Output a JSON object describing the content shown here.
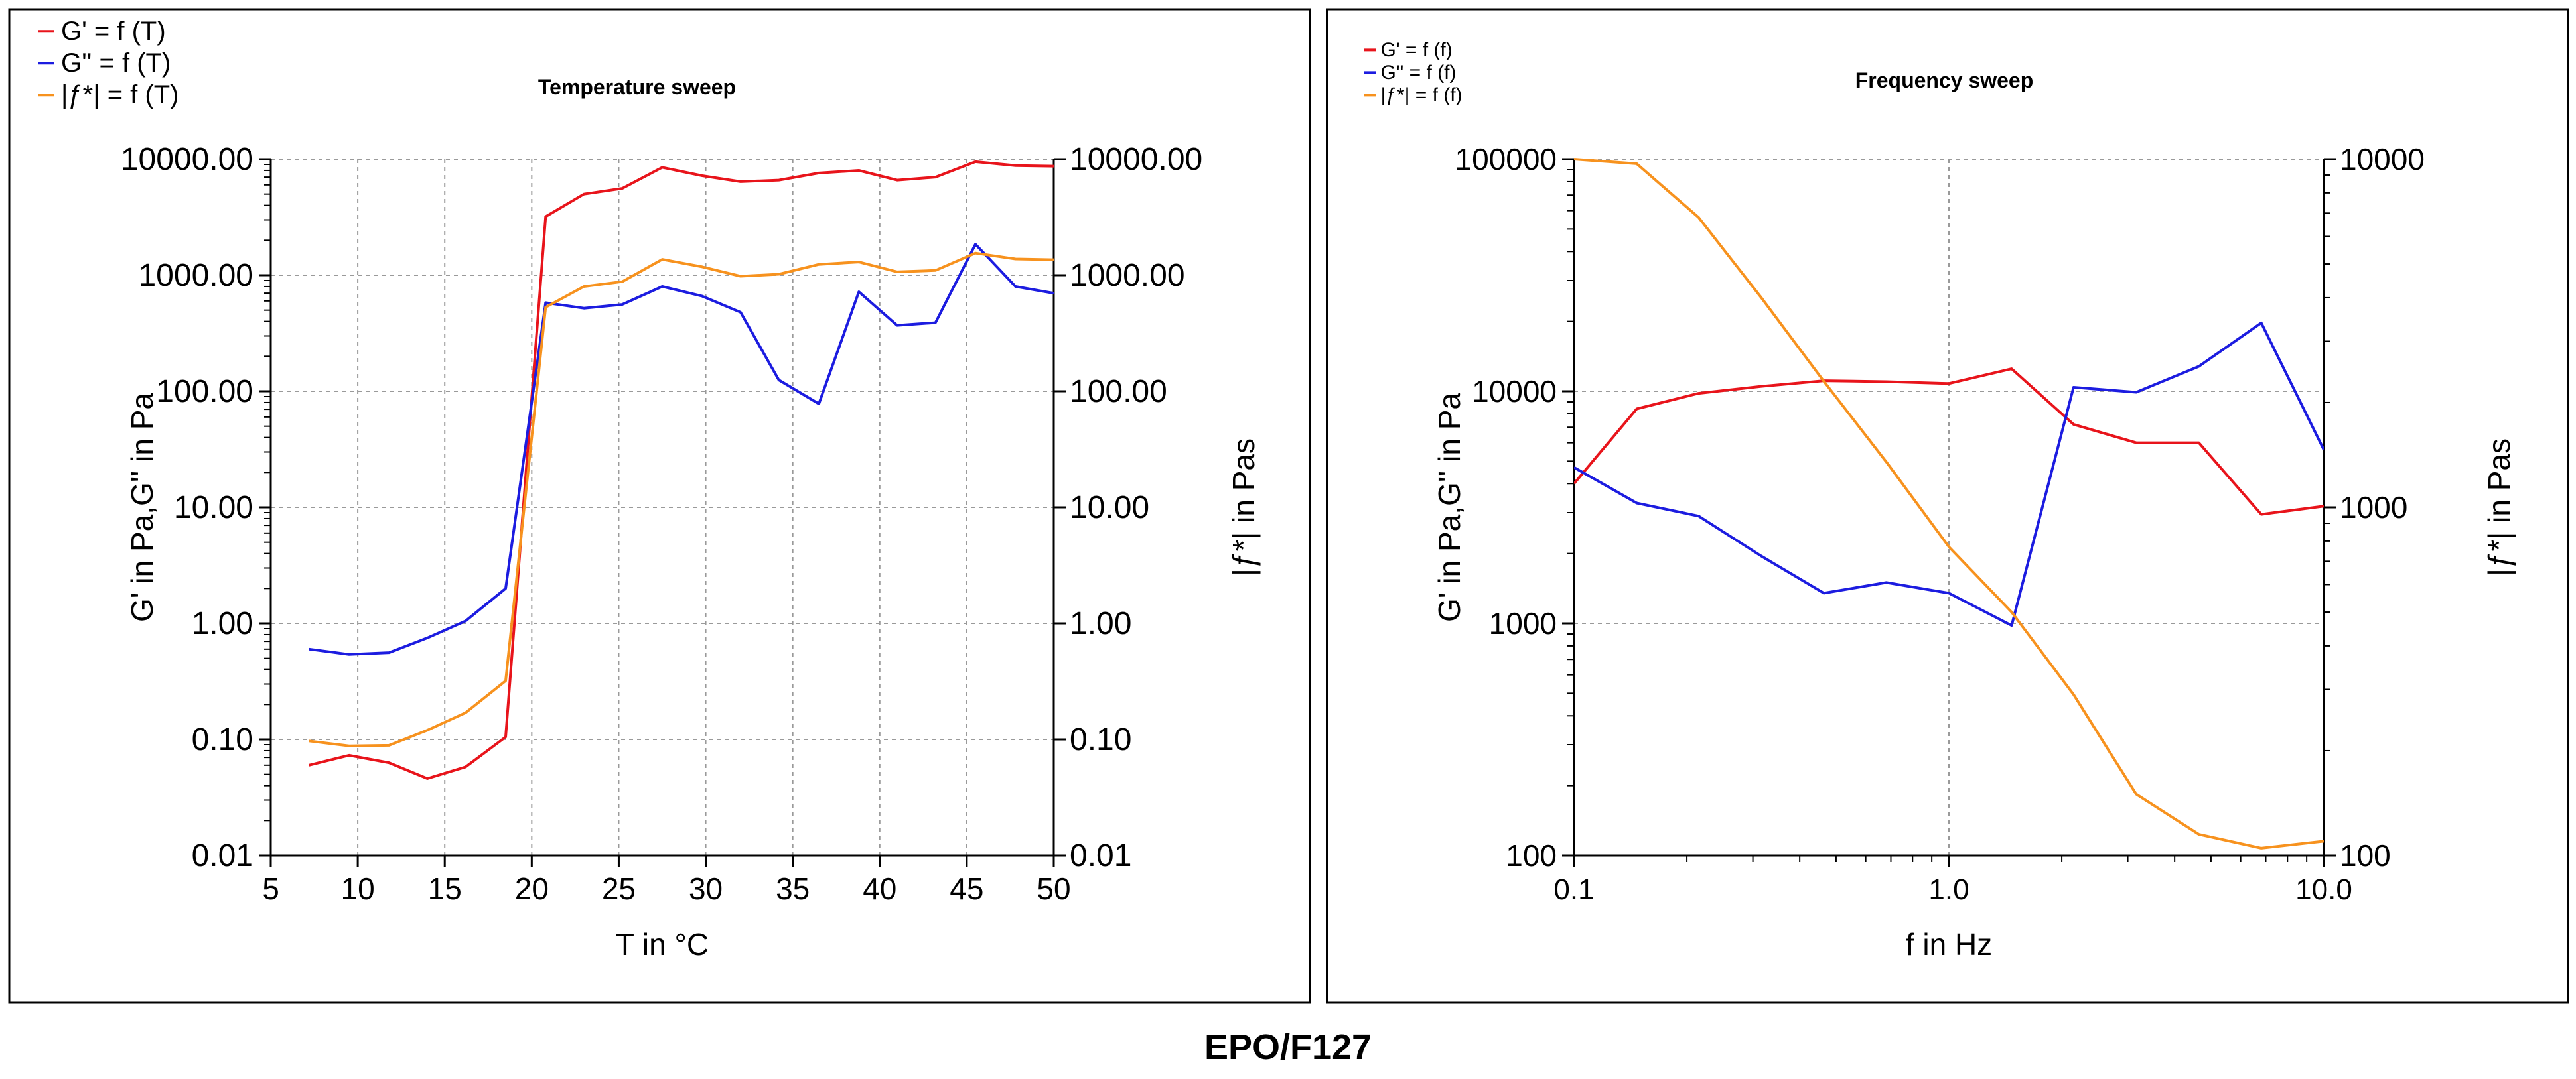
{
  "caption": "EPO/F127",
  "chart_data": [
    {
      "type": "line",
      "title": "Temperature sweep",
      "xlabel": "T in °C",
      "ylabel": "G' in Pa,G'' in Pa",
      "y2label": "|ƒ*| in Pas",
      "xlim": [
        5,
        50
      ],
      "xticks": [
        "5",
        "10",
        "15",
        "20",
        "25",
        "30",
        "35",
        "40",
        "45",
        "50"
      ],
      "yscale": "log",
      "ylim": [
        0.01,
        10000
      ],
      "yticks": [
        "0.01",
        "0.10",
        "1.00",
        "10.00",
        "100.00",
        "1000.00",
        "10000.00"
      ],
      "y2lim": [
        0.01,
        10000
      ],
      "y2ticks": [
        "0.01",
        "0.10",
        "1.00",
        "10.00",
        "100.00",
        "1000.00",
        "10000.00"
      ],
      "grid": true,
      "legend": "top-left outside",
      "series": [
        {
          "name": "G' = f (T)",
          "color": "#e8141b",
          "axis": "left",
          "x": [
            7.2,
            9.5,
            11.8,
            14.0,
            16.2,
            18.5,
            20.8,
            23.0,
            25.2,
            27.5,
            29.8,
            32.0,
            34.2,
            36.5,
            38.8,
            41.0,
            43.2,
            45.5,
            47.8,
            50.0
          ],
          "y": [
            0.06,
            0.073,
            0.063,
            0.046,
            0.058,
            0.105,
            3200,
            5000,
            5600,
            8500,
            7200,
            6400,
            6600,
            7600,
            8000,
            6600,
            7000,
            9500,
            8800,
            8700
          ]
        },
        {
          "name": "G'' = f (T)",
          "color": "#1c1ce0",
          "axis": "left",
          "x": [
            7.2,
            9.5,
            11.8,
            14.0,
            16.2,
            18.5,
            20.8,
            23.0,
            25.2,
            27.5,
            29.8,
            32.0,
            34.2,
            36.5,
            38.8,
            41.0,
            43.2,
            45.5,
            47.8,
            50.0
          ],
          "y": [
            0.6,
            0.54,
            0.56,
            0.75,
            1.05,
            2.0,
            580,
            520,
            560,
            800,
            660,
            480,
            125,
            78,
            720,
            370,
            390,
            1850,
            800,
            700
          ]
        },
        {
          "name": "|ƒ*| = f (T)",
          "color": "#f7921e",
          "axis": "right",
          "x": [
            7.2,
            9.5,
            11.8,
            14.0,
            16.2,
            18.5,
            20.8,
            23.0,
            25.2,
            27.5,
            29.8,
            32.0,
            34.2,
            36.5,
            38.8,
            41.0,
            43.2,
            45.5,
            47.8,
            50.0
          ],
          "y": [
            0.097,
            0.088,
            0.089,
            0.12,
            0.17,
            0.32,
            530,
            800,
            880,
            1370,
            1180,
            980,
            1020,
            1240,
            1300,
            1070,
            1100,
            1550,
            1380,
            1360
          ]
        }
      ]
    },
    {
      "type": "line",
      "title": "Frequency sweep",
      "xlabel": "f in Hz",
      "ylabel": "G' in Pa,G'' in Pa",
      "y2label": "|ƒ*| in Pas",
      "xscale": "log",
      "xlim": [
        0.1,
        10
      ],
      "xticks": [
        "0.1",
        "1.0",
        "10.0"
      ],
      "yscale": "log",
      "ylim": [
        100,
        100000
      ],
      "yticks": [
        "100",
        "1000",
        "10000",
        "100000"
      ],
      "y2scale": "log",
      "y2lim": [
        100,
        10000
      ],
      "y2ticks": [
        "100",
        "1000",
        "10000"
      ],
      "grid": true,
      "legend": "top-left outside",
      "series": [
        {
          "name": "G' = f (f)",
          "color": "#e8141b",
          "axis": "left",
          "x": [
            0.1,
            0.147,
            0.215,
            0.316,
            0.464,
            0.681,
            1.0,
            1.47,
            2.15,
            3.16,
            4.64,
            6.81,
            10.0
          ],
          "y": [
            4000,
            8400,
            9800,
            10500,
            11100,
            11000,
            10800,
            12500,
            7200,
            6000,
            6000,
            2950,
            3200
          ]
        },
        {
          "name": "G'' = f (f)",
          "color": "#1c1ce0",
          "axis": "left",
          "x": [
            0.1,
            0.147,
            0.215,
            0.316,
            0.464,
            0.681,
            1.0,
            1.47,
            2.15,
            3.16,
            4.64,
            6.81,
            10.0
          ],
          "y": [
            4700,
            3300,
            2900,
            1950,
            1350,
            1500,
            1350,
            980,
            10400,
            9900,
            12800,
            19700,
            5600
          ]
        },
        {
          "name": "|ƒ*| = f (f)",
          "color": "#f7921e",
          "axis": "right",
          "x": [
            0.1,
            0.147,
            0.215,
            0.316,
            0.464,
            0.681,
            1.0,
            1.47,
            2.15,
            3.16,
            4.64,
            6.81,
            10.0
          ],
          "y": [
            10000,
            9700,
            6800,
            4000,
            2300,
            1350,
            770,
            500,
            290,
            150,
            115,
            105,
            110
          ]
        }
      ]
    }
  ]
}
